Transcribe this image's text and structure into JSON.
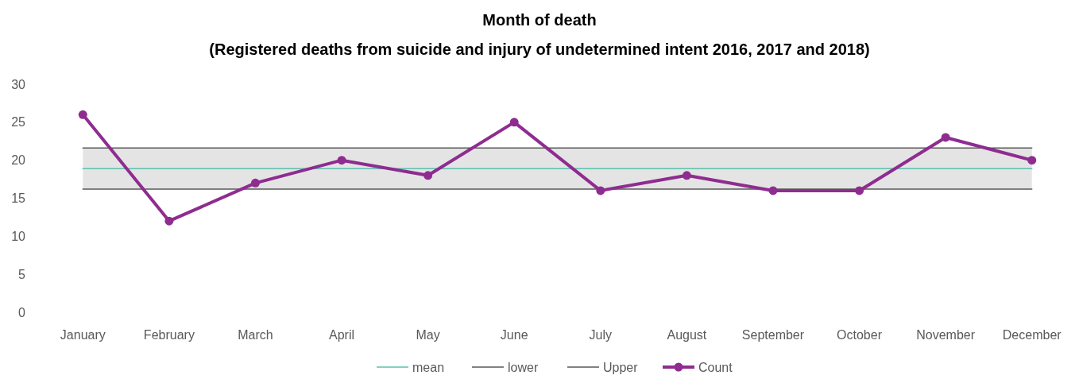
{
  "chart_data": {
    "type": "line",
    "title": "Month of death",
    "subtitle": "(Registered deaths from suicide and injury of undetermined intent 2016, 2017 and 2018)",
    "categories": [
      "January",
      "February",
      "March",
      "April",
      "May",
      "June",
      "July",
      "August",
      "September",
      "October",
      "November",
      "December"
    ],
    "series": [
      {
        "name": "mean",
        "color": "#5cbfae",
        "marker": "none",
        "values": [
          18.9,
          18.9,
          18.9,
          18.9,
          18.9,
          18.9,
          18.9,
          18.9,
          18.9,
          18.9,
          18.9,
          18.9
        ]
      },
      {
        "name": "lower",
        "color": "#595959",
        "marker": "none",
        "values": [
          16.2,
          16.2,
          16.2,
          16.2,
          16.2,
          16.2,
          16.2,
          16.2,
          16.2,
          16.2,
          16.2,
          16.2
        ]
      },
      {
        "name": "Upper",
        "color": "#595959",
        "marker": "none",
        "values": [
          21.6,
          21.6,
          21.6,
          21.6,
          21.6,
          21.6,
          21.6,
          21.6,
          21.6,
          21.6,
          21.6,
          21.6
        ]
      },
      {
        "name": "Count",
        "color": "#8e2c90",
        "marker": "circle",
        "values": [
          26,
          12,
          17,
          20,
          18,
          25,
          16,
          18,
          16,
          16,
          23,
          20
        ]
      }
    ],
    "bands": [
      {
        "axis": "y",
        "from": 16.2,
        "to": 21.6,
        "color": "#e4e4e4"
      }
    ],
    "ylim": [
      0,
      30
    ],
    "yticks": [
      0,
      5,
      10,
      15,
      20,
      25,
      30
    ],
    "grid": false,
    "legend": "bottom"
  }
}
